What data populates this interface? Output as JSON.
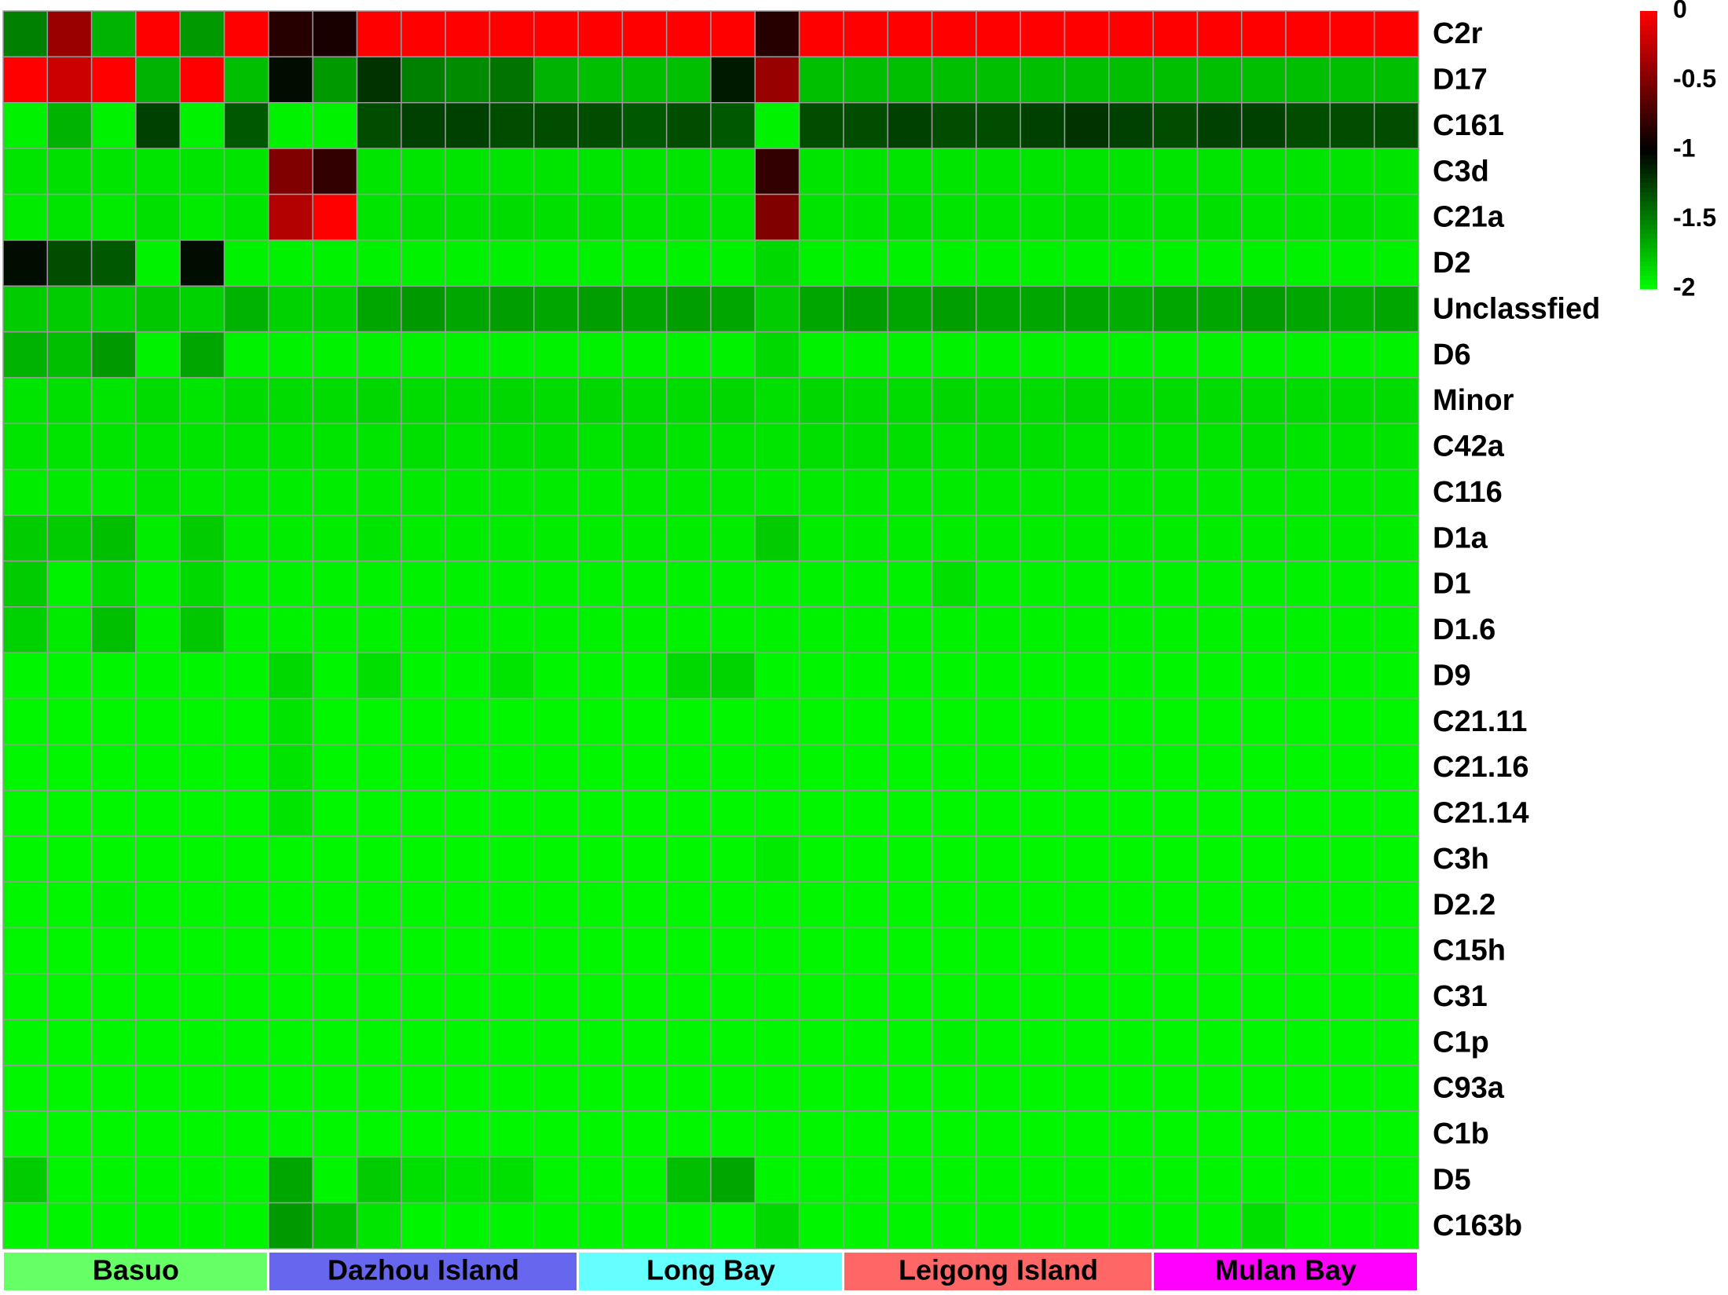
{
  "chart_data": {
    "type": "heatmap",
    "rows": [
      "C2r",
      "D17",
      "C161",
      "C3d",
      "C21a",
      "D2",
      "Unclassfied",
      "D6",
      "Minor",
      "C42a",
      "C116",
      "D1a",
      "D1",
      "D1.6",
      "D9",
      "C21.11",
      "C21.16",
      "C21.14",
      "C3h",
      "D2.2",
      "C15h",
      "C31",
      "C1p",
      "C93a",
      "C1b",
      "D5",
      "C163b"
    ],
    "groups": [
      {
        "name": "Basuo",
        "span": 6,
        "color": "#66ff66"
      },
      {
        "name": "Dazhou Island",
        "span": 7,
        "color": "#6666ee"
      },
      {
        "name": "Long Bay",
        "span": 6,
        "color": "#66ffff"
      },
      {
        "name": "Leigong Island",
        "span": 7,
        "color": "#ff6666"
      },
      {
        "name": "Mulan Bay",
        "span": 6,
        "color": "#ff00ff"
      }
    ],
    "colors": [
      "#00ff00",
      "#000000",
      "#ff0000"
    ],
    "zlim": [
      -2,
      0
    ],
    "zticks": [
      0,
      -0.5,
      -1,
      -1.5,
      -2
    ],
    "values": [
      [
        -1.5,
        -0.4,
        -1.7,
        0,
        -1.6,
        0,
        -0.85,
        -0.9,
        0,
        0,
        0,
        0,
        0,
        0,
        0,
        0,
        0,
        -0.85,
        0,
        0,
        0,
        0,
        0,
        0,
        0,
        0,
        0,
        0,
        0,
        0,
        0,
        0
      ],
      [
        0,
        -0.2,
        0,
        -1.7,
        0,
        -1.75,
        -1.05,
        -1.6,
        -1.2,
        -1.5,
        -1.55,
        -1.45,
        -1.7,
        -1.75,
        -1.75,
        -1.75,
        -1.1,
        -0.4,
        -1.75,
        -1.75,
        -1.75,
        -1.75,
        -1.75,
        -1.75,
        -1.75,
        -1.75,
        -1.75,
        -1.75,
        -1.75,
        -1.75,
        -1.75,
        -1.75
      ],
      [
        -1.95,
        -1.7,
        -1.95,
        -1.25,
        -1.95,
        -1.35,
        -1.95,
        -1.95,
        -1.3,
        -1.25,
        -1.25,
        -1.3,
        -1.3,
        -1.3,
        -1.35,
        -1.3,
        -1.35,
        -1.95,
        -1.3,
        -1.3,
        -1.25,
        -1.3,
        -1.3,
        -1.25,
        -1.2,
        -1.25,
        -1.3,
        -1.25,
        -1.25,
        -1.3,
        -1.3,
        -1.3
      ],
      [
        -1.9,
        -1.88,
        -1.9,
        -1.9,
        -1.9,
        -1.9,
        -0.5,
        -0.8,
        -1.9,
        -1.9,
        -1.9,
        -1.9,
        -1.9,
        -1.9,
        -1.9,
        -1.9,
        -1.9,
        -0.8,
        -1.9,
        -1.9,
        -1.9,
        -1.9,
        -1.9,
        -1.9,
        -1.9,
        -1.9,
        -1.9,
        -1.9,
        -1.9,
        -1.9,
        -1.9,
        -1.9
      ],
      [
        -1.92,
        -1.9,
        -1.92,
        -1.88,
        -1.92,
        -1.9,
        -0.3,
        0,
        -1.9,
        -1.88,
        -1.88,
        -1.86,
        -1.88,
        -1.88,
        -1.9,
        -1.9,
        -1.9,
        -0.5,
        -1.9,
        -1.9,
        -1.88,
        -1.9,
        -1.9,
        -1.9,
        -1.88,
        -1.9,
        -1.9,
        -1.88,
        -1.9,
        -1.9,
        -1.88,
        -1.9
      ],
      [
        -1.05,
        -1.3,
        -1.35,
        -1.95,
        -1.05,
        -1.95,
        -1.95,
        -1.95,
        -1.95,
        -1.95,
        -1.95,
        -1.95,
        -1.95,
        -1.95,
        -1.95,
        -1.95,
        -1.95,
        -1.85,
        -1.95,
        -1.95,
        -1.95,
        -1.95,
        -1.95,
        -1.95,
        -1.95,
        -1.95,
        -1.95,
        -1.95,
        -1.95,
        -1.95,
        -1.95,
        -1.95
      ],
      [
        -1.8,
        -1.8,
        -1.82,
        -1.78,
        -1.82,
        -1.7,
        -1.82,
        -1.82,
        -1.65,
        -1.6,
        -1.65,
        -1.62,
        -1.65,
        -1.62,
        -1.65,
        -1.62,
        -1.65,
        -1.8,
        -1.65,
        -1.62,
        -1.65,
        -1.62,
        -1.65,
        -1.65,
        -1.65,
        -1.68,
        -1.65,
        -1.65,
        -1.62,
        -1.65,
        -1.68,
        -1.65
      ],
      [
        -1.7,
        -1.75,
        -1.6,
        -1.95,
        -1.65,
        -1.95,
        -1.95,
        -1.95,
        -1.95,
        -1.95,
        -1.95,
        -1.95,
        -1.95,
        -1.95,
        -1.95,
        -1.95,
        -1.95,
        -1.85,
        -1.95,
        -1.95,
        -1.95,
        -1.95,
        -1.95,
        -1.95,
        -1.95,
        -1.95,
        -1.95,
        -1.95,
        -1.95,
        -1.95,
        -1.95,
        -1.95
      ],
      [
        -1.9,
        -1.88,
        -1.9,
        -1.86,
        -1.9,
        -1.86,
        -1.86,
        -1.86,
        -1.84,
        -1.86,
        -1.86,
        -1.84,
        -1.86,
        -1.84,
        -1.86,
        -1.86,
        -1.84,
        -1.88,
        -1.84,
        -1.86,
        -1.86,
        -1.84,
        -1.86,
        -1.86,
        -1.84,
        -1.86,
        -1.86,
        -1.86,
        -1.86,
        -1.86,
        -1.86,
        -1.86
      ],
      [
        -1.9,
        -1.9,
        -1.9,
        -1.9,
        -1.9,
        -1.9,
        -1.9,
        -1.9,
        -1.9,
        -1.88,
        -1.9,
        -1.88,
        -1.88,
        -1.9,
        -1.88,
        -1.9,
        -1.9,
        -1.9,
        -1.88,
        -1.88,
        -1.88,
        -1.9,
        -1.88,
        -1.88,
        -1.9,
        -1.9,
        -1.9,
        -1.9,
        -1.88,
        -1.9,
        -1.9,
        -1.9
      ],
      [
        -1.93,
        -1.92,
        -1.93,
        -1.9,
        -1.92,
        -1.92,
        -1.93,
        -1.93,
        -1.92,
        -1.92,
        -1.92,
        -1.92,
        -1.92,
        -1.93,
        -1.92,
        -1.92,
        -1.92,
        -1.93,
        -1.92,
        -1.92,
        -1.92,
        -1.92,
        -1.92,
        -1.92,
        -1.92,
        -1.92,
        -1.92,
        -1.92,
        -1.92,
        -1.92,
        -1.92,
        -1.92
      ],
      [
        -1.8,
        -1.8,
        -1.75,
        -1.93,
        -1.8,
        -1.93,
        -1.93,
        -1.93,
        -1.9,
        -1.93,
        -1.93,
        -1.93,
        -1.93,
        -1.93,
        -1.93,
        -1.93,
        -1.93,
        -1.8,
        -1.93,
        -1.93,
        -1.93,
        -1.93,
        -1.93,
        -1.93,
        -1.93,
        -1.93,
        -1.93,
        -1.93,
        -1.93,
        -1.93,
        -1.93,
        -1.93
      ],
      [
        -1.8,
        -1.95,
        -1.85,
        -1.95,
        -1.85,
        -1.95,
        -1.95,
        -1.95,
        -1.95,
        -1.95,
        -1.95,
        -1.95,
        -1.95,
        -1.95,
        -1.95,
        -1.95,
        -1.95,
        -1.95,
        -1.95,
        -1.95,
        -1.95,
        -1.88,
        -1.95,
        -1.95,
        -1.95,
        -1.95,
        -1.95,
        -1.95,
        -1.95,
        -1.95,
        -1.95,
        -1.95
      ],
      [
        -1.82,
        -1.92,
        -1.75,
        -1.95,
        -1.78,
        -1.95,
        -1.95,
        -1.95,
        -1.95,
        -1.95,
        -1.95,
        -1.95,
        -1.95,
        -1.95,
        -1.95,
        -1.95,
        -1.95,
        -1.95,
        -1.95,
        -1.95,
        -1.95,
        -1.95,
        -1.95,
        -1.95,
        -1.95,
        -1.95,
        -1.95,
        -1.95,
        -1.95,
        -1.95,
        -1.95,
        -1.95
      ],
      [
        -1.96,
        -1.96,
        -1.96,
        -1.96,
        -1.96,
        -1.96,
        -1.85,
        -1.96,
        -1.88,
        -1.96,
        -1.96,
        -1.9,
        -1.96,
        -1.96,
        -1.96,
        -1.85,
        -1.83,
        -1.96,
        -1.96,
        -1.96,
        -1.96,
        -1.96,
        -1.96,
        -1.96,
        -1.96,
        -1.96,
        -1.96,
        -1.96,
        -1.96,
        -1.96,
        -1.96,
        -1.96
      ],
      [
        -1.97,
        -1.97,
        -1.97,
        -1.97,
        -1.97,
        -1.97,
        -1.9,
        -1.97,
        -1.97,
        -1.97,
        -1.97,
        -1.97,
        -1.97,
        -1.97,
        -1.97,
        -1.97,
        -1.97,
        -1.97,
        -1.97,
        -1.97,
        -1.97,
        -1.97,
        -1.97,
        -1.97,
        -1.97,
        -1.97,
        -1.97,
        -1.97,
        -1.97,
        -1.97,
        -1.97,
        -1.97
      ],
      [
        -1.97,
        -1.97,
        -1.97,
        -1.97,
        -1.97,
        -1.97,
        -1.9,
        -1.97,
        -1.97,
        -1.97,
        -1.97,
        -1.97,
        -1.97,
        -1.97,
        -1.97,
        -1.97,
        -1.97,
        -1.97,
        -1.97,
        -1.97,
        -1.97,
        -1.97,
        -1.97,
        -1.97,
        -1.97,
        -1.97,
        -1.97,
        -1.97,
        -1.97,
        -1.97,
        -1.97,
        -1.97
      ],
      [
        -1.97,
        -1.97,
        -1.97,
        -1.97,
        -1.97,
        -1.97,
        -1.9,
        -1.97,
        -1.97,
        -1.97,
        -1.97,
        -1.97,
        -1.97,
        -1.97,
        -1.97,
        -1.97,
        -1.97,
        -1.97,
        -1.97,
        -1.97,
        -1.97,
        -1.97,
        -1.97,
        -1.97,
        -1.97,
        -1.97,
        -1.97,
        -1.97,
        -1.97,
        -1.97,
        -1.97,
        -1.97
      ],
      [
        -1.97,
        -1.97,
        -1.97,
        -1.97,
        -1.97,
        -1.97,
        -1.97,
        -1.97,
        -1.97,
        -1.97,
        -1.97,
        -1.97,
        -1.97,
        -1.97,
        -1.97,
        -1.97,
        -1.97,
        -1.92,
        -1.97,
        -1.97,
        -1.97,
        -1.97,
        -1.97,
        -1.97,
        -1.97,
        -1.97,
        -1.97,
        -1.97,
        -1.97,
        -1.97,
        -1.97,
        -1.97
      ],
      [
        -1.97,
        -1.97,
        -1.95,
        -1.97,
        -1.97,
        -1.97,
        -1.97,
        -1.97,
        -1.97,
        -1.97,
        -1.97,
        -1.97,
        -1.97,
        -1.97,
        -1.97,
        -1.97,
        -1.97,
        -1.97,
        -1.97,
        -1.97,
        -1.97,
        -1.97,
        -1.97,
        -1.97,
        -1.97,
        -1.97,
        -1.97,
        -1.97,
        -1.97,
        -1.97,
        -1.97,
        -1.97
      ],
      [
        -1.97,
        -1.97,
        -1.97,
        -1.97,
        -1.97,
        -1.97,
        -1.97,
        -1.97,
        -1.97,
        -1.97,
        -1.97,
        -1.97,
        -1.97,
        -1.97,
        -1.97,
        -1.97,
        -1.97,
        -1.97,
        -1.97,
        -1.97,
        -1.97,
        -1.97,
        -1.97,
        -1.97,
        -1.97,
        -1.97,
        -1.97,
        -1.97,
        -1.97,
        -1.97,
        -1.97,
        -1.97
      ],
      [
        -1.97,
        -1.97,
        -1.97,
        -1.97,
        -1.97,
        -1.97,
        -1.97,
        -1.97,
        -1.97,
        -1.97,
        -1.97,
        -1.97,
        -1.97,
        -1.97,
        -1.97,
        -1.97,
        -1.97,
        -1.97,
        -1.97,
        -1.97,
        -1.97,
        -1.97,
        -1.97,
        -1.97,
        -1.97,
        -1.97,
        -1.97,
        -1.97,
        -1.97,
        -1.97,
        -1.97,
        -1.97
      ],
      [
        -1.97,
        -1.97,
        -1.97,
        -1.97,
        -1.97,
        -1.97,
        -1.97,
        -1.97,
        -1.97,
        -1.97,
        -1.97,
        -1.97,
        -1.97,
        -1.97,
        -1.97,
        -1.97,
        -1.97,
        -1.97,
        -1.97,
        -1.97,
        -1.97,
        -1.95,
        -1.97,
        -1.97,
        -1.97,
        -1.97,
        -1.97,
        -1.97,
        -1.97,
        -1.97,
        -1.97,
        -1.97
      ],
      [
        -1.97,
        -1.97,
        -1.97,
        -1.97,
        -1.97,
        -1.97,
        -1.97,
        -1.97,
        -1.97,
        -1.97,
        -1.97,
        -1.97,
        -1.97,
        -1.97,
        -1.97,
        -1.97,
        -1.97,
        -1.97,
        -1.97,
        -1.97,
        -1.97,
        -1.97,
        -1.97,
        -1.97,
        -1.97,
        -1.97,
        -1.97,
        -1.97,
        -1.97,
        -1.97,
        -1.97,
        -1.97
      ],
      [
        -1.96,
        -1.97,
        -1.97,
        -1.97,
        -1.97,
        -1.97,
        -1.96,
        -1.97,
        -1.97,
        -1.97,
        -1.97,
        -1.97,
        -1.97,
        -1.97,
        -1.97,
        -1.97,
        -1.97,
        -1.97,
        -1.97,
        -1.97,
        -1.97,
        -1.97,
        -1.97,
        -1.97,
        -1.97,
        -1.97,
        -1.97,
        -1.97,
        -1.97,
        -1.97,
        -1.97,
        -1.97
      ],
      [
        -1.8,
        -1.96,
        -1.96,
        -1.96,
        -1.96,
        -1.96,
        -1.65,
        -1.96,
        -1.8,
        -1.88,
        -1.9,
        -1.88,
        -1.96,
        -1.96,
        -1.96,
        -1.75,
        -1.65,
        -1.96,
        -1.96,
        -1.96,
        -1.96,
        -1.96,
        -1.96,
        -1.96,
        -1.96,
        -1.96,
        -1.96,
        -1.96,
        -1.96,
        -1.96,
        -1.96,
        -1.96
      ],
      [
        -1.96,
        -1.96,
        -1.96,
        -1.96,
        -1.96,
        -1.96,
        -1.6,
        -1.75,
        -1.9,
        -1.96,
        -1.96,
        -1.96,
        -1.96,
        -1.96,
        -1.96,
        -1.96,
        -1.96,
        -1.85,
        -1.96,
        -1.96,
        -1.96,
        -1.96,
        -1.96,
        -1.96,
        -1.96,
        -1.96,
        -1.96,
        -1.96,
        -1.88,
        -1.96,
        -1.96,
        -1.96
      ]
    ]
  }
}
